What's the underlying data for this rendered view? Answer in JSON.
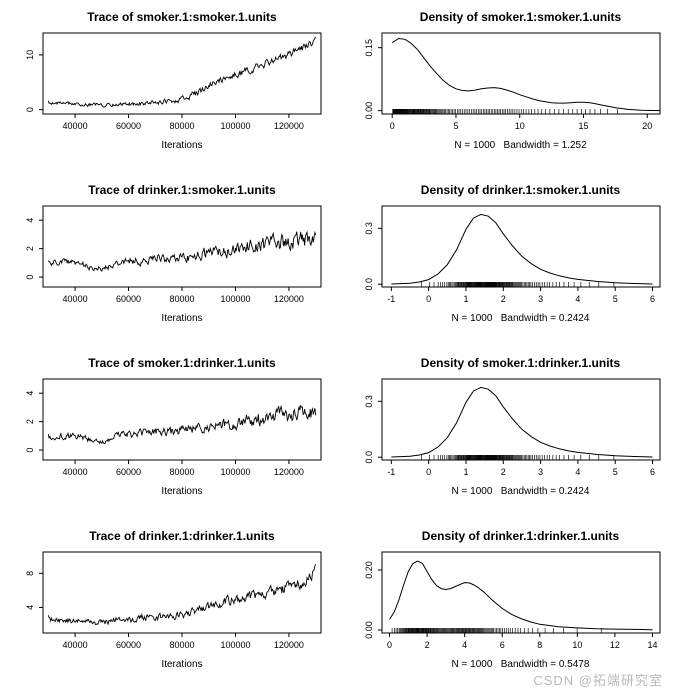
{
  "page": {
    "background": "#ffffff",
    "text_color": "#000000",
    "watermark": "CSDN @拓端研究室",
    "watermark_color": "#b9b9b9"
  },
  "chart_data": [
    {
      "type": "line",
      "subtype": "mcmc-trace",
      "title": "Trace of smoker.1:smoker.1.units",
      "xlabel": "Iterations",
      "subtitle": "",
      "xlim": [
        28000,
        132000
      ],
      "ylim": [
        -0.8,
        14
      ],
      "xticks": [
        40000,
        60000,
        80000,
        100000,
        120000
      ],
      "xtick_labels": [
        "40000",
        "60000",
        "80000",
        "100000",
        "120000"
      ],
      "yticks": [
        0,
        10
      ],
      "ytick_labels": [
        "0",
        "10"
      ],
      "grid": false,
      "legend": "none",
      "trend": [
        [
          30000,
          1.2,
          0.5
        ],
        [
          40000,
          1.0,
          0.5
        ],
        [
          50000,
          0.8,
          0.5
        ],
        [
          60000,
          1.0,
          0.55
        ],
        [
          70000,
          1.3,
          0.6
        ],
        [
          80000,
          1.8,
          0.8
        ],
        [
          85000,
          3.0,
          0.9
        ],
        [
          90000,
          4.5,
          1.0
        ],
        [
          95000,
          5.5,
          1.0
        ],
        [
          100000,
          6.5,
          1.0
        ],
        [
          105000,
          7.2,
          1.0
        ],
        [
          110000,
          8.2,
          1.0
        ],
        [
          115000,
          9.0,
          1.1
        ],
        [
          120000,
          10.0,
          1.1
        ],
        [
          125000,
          11.2,
          1.0
        ],
        [
          130000,
          12.6,
          0.9
        ]
      ]
    },
    {
      "type": "line",
      "subtype": "density",
      "title": "Density of smoker.1:smoker.1.units",
      "xlabel": "",
      "subtitle": "N = 1000   Bandwidth = 1.252",
      "xlim": [
        -0.8,
        21
      ],
      "ylim": [
        -0.008,
        0.185
      ],
      "xticks": [
        0,
        5,
        10,
        15,
        20
      ],
      "xtick_labels": [
        "0",
        "5",
        "10",
        "15",
        "20"
      ],
      "yticks": [
        0.0,
        0.15
      ],
      "ytick_labels": [
        "0.00",
        "0.15"
      ],
      "grid": false,
      "legend": "none",
      "rug": true,
      "points": {
        "x": [
          0,
          0.5,
          1,
          1.5,
          2,
          2.5,
          3,
          3.5,
          4,
          4.5,
          5,
          5.5,
          6,
          6.5,
          7,
          7.5,
          8,
          8.5,
          9,
          9.5,
          10,
          10.5,
          11,
          11.5,
          12,
          12.5,
          13,
          13.5,
          14,
          14.5,
          15,
          15.5,
          16,
          16.5,
          17,
          17.5,
          18,
          18.5,
          19,
          19.5,
          20,
          21
        ],
        "y": [
          0.162,
          0.172,
          0.17,
          0.16,
          0.145,
          0.125,
          0.105,
          0.088,
          0.072,
          0.06,
          0.052,
          0.048,
          0.047,
          0.049,
          0.052,
          0.054,
          0.055,
          0.053,
          0.049,
          0.044,
          0.038,
          0.033,
          0.028,
          0.024,
          0.021,
          0.019,
          0.018,
          0.018,
          0.019,
          0.02,
          0.02,
          0.019,
          0.016,
          0.013,
          0.01,
          0.007,
          0.005,
          0.003,
          0.002,
          0.001,
          0.0005,
          0
        ]
      }
    },
    {
      "type": "line",
      "subtype": "mcmc-trace",
      "title": "Trace of drinker.1:smoker.1.units",
      "xlabel": "Iterations",
      "subtitle": "",
      "xlim": [
        28000,
        132000
      ],
      "ylim": [
        -0.7,
        5
      ],
      "xticks": [
        40000,
        60000,
        80000,
        100000,
        120000
      ],
      "xtick_labels": [
        "40000",
        "60000",
        "80000",
        "100000",
        "120000"
      ],
      "yticks": [
        0,
        2,
        4
      ],
      "ytick_labels": [
        "0",
        "2",
        "4"
      ],
      "grid": false,
      "legend": "none",
      "trend": [
        [
          30000,
          1.0,
          0.3
        ],
        [
          40000,
          1.1,
          0.35
        ],
        [
          45000,
          0.7,
          0.3
        ],
        [
          50000,
          0.55,
          0.3
        ],
        [
          55000,
          0.9,
          0.35
        ],
        [
          60000,
          1.2,
          0.4
        ],
        [
          65000,
          1.1,
          0.4
        ],
        [
          70000,
          1.4,
          0.45
        ],
        [
          75000,
          1.2,
          0.45
        ],
        [
          80000,
          1.3,
          0.5
        ],
        [
          85000,
          1.5,
          0.55
        ],
        [
          90000,
          1.8,
          0.6
        ],
        [
          95000,
          1.7,
          0.65
        ],
        [
          100000,
          2.0,
          0.7
        ],
        [
          105000,
          2.2,
          0.75
        ],
        [
          110000,
          2.2,
          0.8
        ],
        [
          115000,
          2.4,
          0.85
        ],
        [
          120000,
          2.5,
          0.9
        ],
        [
          125000,
          2.6,
          0.95
        ],
        [
          130000,
          2.8,
          0.9
        ]
      ]
    },
    {
      "type": "line",
      "subtype": "density",
      "title": "Density of drinker.1:smoker.1.units",
      "xlabel": "",
      "subtitle": "N = 1000   Bandwidth = 0.2424",
      "xlim": [
        -1.25,
        6.2
      ],
      "ylim": [
        -0.015,
        0.42
      ],
      "xticks": [
        -1,
        0,
        1,
        2,
        3,
        4,
        5,
        6
      ],
      "xtick_labels": [
        "-1",
        "0",
        "1",
        "2",
        "3",
        "4",
        "5",
        "6"
      ],
      "yticks": [
        0.0,
        0.3
      ],
      "ytick_labels": [
        "0.0",
        "0.3"
      ],
      "grid": false,
      "legend": "none",
      "rug": true,
      "points": {
        "x": [
          -1,
          -0.5,
          -0.25,
          0,
          0.25,
          0.5,
          0.75,
          1,
          1.2,
          1.4,
          1.6,
          1.8,
          2,
          2.25,
          2.5,
          2.75,
          3,
          3.25,
          3.5,
          3.75,
          4,
          4.5,
          5,
          5.5,
          6
        ],
        "y": [
          0.001,
          0.005,
          0.012,
          0.025,
          0.055,
          0.105,
          0.185,
          0.295,
          0.355,
          0.375,
          0.365,
          0.33,
          0.27,
          0.205,
          0.15,
          0.11,
          0.08,
          0.06,
          0.045,
          0.034,
          0.026,
          0.015,
          0.008,
          0.004,
          0.001
        ]
      }
    },
    {
      "type": "line",
      "subtype": "mcmc-trace",
      "title": "Trace of smoker.1:drinker.1.units",
      "xlabel": "Iterations",
      "subtitle": "",
      "xlim": [
        28000,
        132000
      ],
      "ylim": [
        -0.7,
        5
      ],
      "xticks": [
        40000,
        60000,
        80000,
        100000,
        120000
      ],
      "xtick_labels": [
        "40000",
        "60000",
        "80000",
        "100000",
        "120000"
      ],
      "yticks": [
        0,
        2,
        4
      ],
      "ytick_labels": [
        "0",
        "2",
        "4"
      ],
      "grid": false,
      "legend": "none",
      "trend": [
        [
          30000,
          0.9,
          0.3
        ],
        [
          40000,
          1.0,
          0.35
        ],
        [
          45000,
          0.75,
          0.3
        ],
        [
          50000,
          0.6,
          0.3
        ],
        [
          55000,
          0.95,
          0.35
        ],
        [
          60000,
          1.15,
          0.4
        ],
        [
          65000,
          1.2,
          0.4
        ],
        [
          70000,
          1.35,
          0.45
        ],
        [
          75000,
          1.25,
          0.45
        ],
        [
          80000,
          1.35,
          0.5
        ],
        [
          85000,
          1.55,
          0.55
        ],
        [
          90000,
          1.75,
          0.6
        ],
        [
          95000,
          1.8,
          0.65
        ],
        [
          100000,
          1.95,
          0.7
        ],
        [
          105000,
          2.1,
          0.75
        ],
        [
          110000,
          2.25,
          0.8
        ],
        [
          115000,
          2.35,
          0.85
        ],
        [
          120000,
          2.55,
          0.9
        ],
        [
          125000,
          2.65,
          0.95
        ],
        [
          130000,
          2.75,
          0.9
        ]
      ]
    },
    {
      "type": "line",
      "subtype": "density",
      "title": "Density of smoker.1:drinker.1.units",
      "xlabel": "",
      "subtitle": "N = 1000   Bandwidth = 0.2424",
      "xlim": [
        -1.25,
        6.2
      ],
      "ylim": [
        -0.015,
        0.42
      ],
      "xticks": [
        -1,
        0,
        1,
        2,
        3,
        4,
        5,
        6
      ],
      "xtick_labels": [
        "-1",
        "0",
        "1",
        "2",
        "3",
        "4",
        "5",
        "6"
      ],
      "yticks": [
        0.0,
        0.3
      ],
      "ytick_labels": [
        "0.0",
        "0.3"
      ],
      "grid": false,
      "legend": "none",
      "rug": true,
      "points": {
        "x": [
          -1,
          -0.5,
          -0.25,
          0,
          0.25,
          0.5,
          0.75,
          1,
          1.2,
          1.4,
          1.6,
          1.8,
          2,
          2.25,
          2.5,
          2.75,
          3,
          3.25,
          3.5,
          3.75,
          4,
          4.5,
          5,
          5.5,
          6
        ],
        "y": [
          0.001,
          0.005,
          0.012,
          0.025,
          0.055,
          0.105,
          0.185,
          0.295,
          0.355,
          0.375,
          0.365,
          0.33,
          0.27,
          0.205,
          0.15,
          0.11,
          0.08,
          0.06,
          0.045,
          0.034,
          0.026,
          0.015,
          0.008,
          0.004,
          0.001
        ]
      }
    },
    {
      "type": "line",
      "subtype": "mcmc-trace",
      "title": "Trace of drinker.1:drinker.1.units",
      "xlabel": "Iterations",
      "subtitle": "",
      "xlim": [
        28000,
        132000
      ],
      "ylim": [
        1.0,
        10.5
      ],
      "xticks": [
        40000,
        60000,
        80000,
        100000,
        120000
      ],
      "xtick_labels": [
        "40000",
        "60000",
        "80000",
        "100000",
        "120000"
      ],
      "yticks": [
        4,
        8
      ],
      "ytick_labels": [
        "4",
        "8"
      ],
      "grid": false,
      "legend": "none",
      "trend": [
        [
          30000,
          2.6,
          0.5
        ],
        [
          40000,
          2.4,
          0.5
        ],
        [
          50000,
          2.2,
          0.5
        ],
        [
          55000,
          2.6,
          0.55
        ],
        [
          60000,
          2.5,
          0.55
        ],
        [
          65000,
          2.9,
          0.6
        ],
        [
          70000,
          2.8,
          0.6
        ],
        [
          75000,
          3.0,
          0.65
        ],
        [
          80000,
          3.2,
          0.7
        ],
        [
          85000,
          3.6,
          0.75
        ],
        [
          90000,
          4.2,
          0.8
        ],
        [
          95000,
          4.6,
          0.8
        ],
        [
          100000,
          5.0,
          0.85
        ],
        [
          105000,
          5.3,
          0.85
        ],
        [
          110000,
          5.6,
          0.9
        ],
        [
          115000,
          5.9,
          0.95
        ],
        [
          120000,
          6.4,
          1.0
        ],
        [
          125000,
          7.0,
          1.0
        ],
        [
          128000,
          7.8,
          1.1
        ],
        [
          130000,
          8.8,
          0.9
        ]
      ]
    },
    {
      "type": "line",
      "subtype": "density",
      "title": "Density of drinker.1:drinker.1.units",
      "xlabel": "",
      "subtitle": "N = 1000   Bandwidth = 0.5478",
      "xlim": [
        -0.4,
        14.4
      ],
      "ylim": [
        -0.01,
        0.26
      ],
      "xticks": [
        0,
        2,
        4,
        6,
        8,
        10,
        12,
        14
      ],
      "xtick_labels": [
        "0",
        "2",
        "4",
        "6",
        "8",
        "10",
        "12",
        "14"
      ],
      "yticks": [
        0.0,
        0.2
      ],
      "ytick_labels": [
        "0.00",
        "0.20"
      ],
      "grid": false,
      "legend": "none",
      "rug": true,
      "points": {
        "x": [
          0,
          0.25,
          0.5,
          0.75,
          1,
          1.25,
          1.5,
          1.75,
          2,
          2.25,
          2.5,
          2.75,
          3,
          3.25,
          3.5,
          3.75,
          4,
          4.25,
          4.5,
          4.75,
          5,
          5.5,
          6,
          6.5,
          7,
          7.5,
          8,
          9,
          10,
          11,
          12,
          13,
          14
        ],
        "y": [
          0.035,
          0.06,
          0.1,
          0.15,
          0.195,
          0.222,
          0.23,
          0.222,
          0.195,
          0.168,
          0.148,
          0.138,
          0.135,
          0.138,
          0.145,
          0.152,
          0.158,
          0.157,
          0.15,
          0.14,
          0.128,
          0.098,
          0.072,
          0.052,
          0.038,
          0.027,
          0.019,
          0.011,
          0.007,
          0.004,
          0.003,
          0.002,
          0.001
        ]
      }
    }
  ]
}
